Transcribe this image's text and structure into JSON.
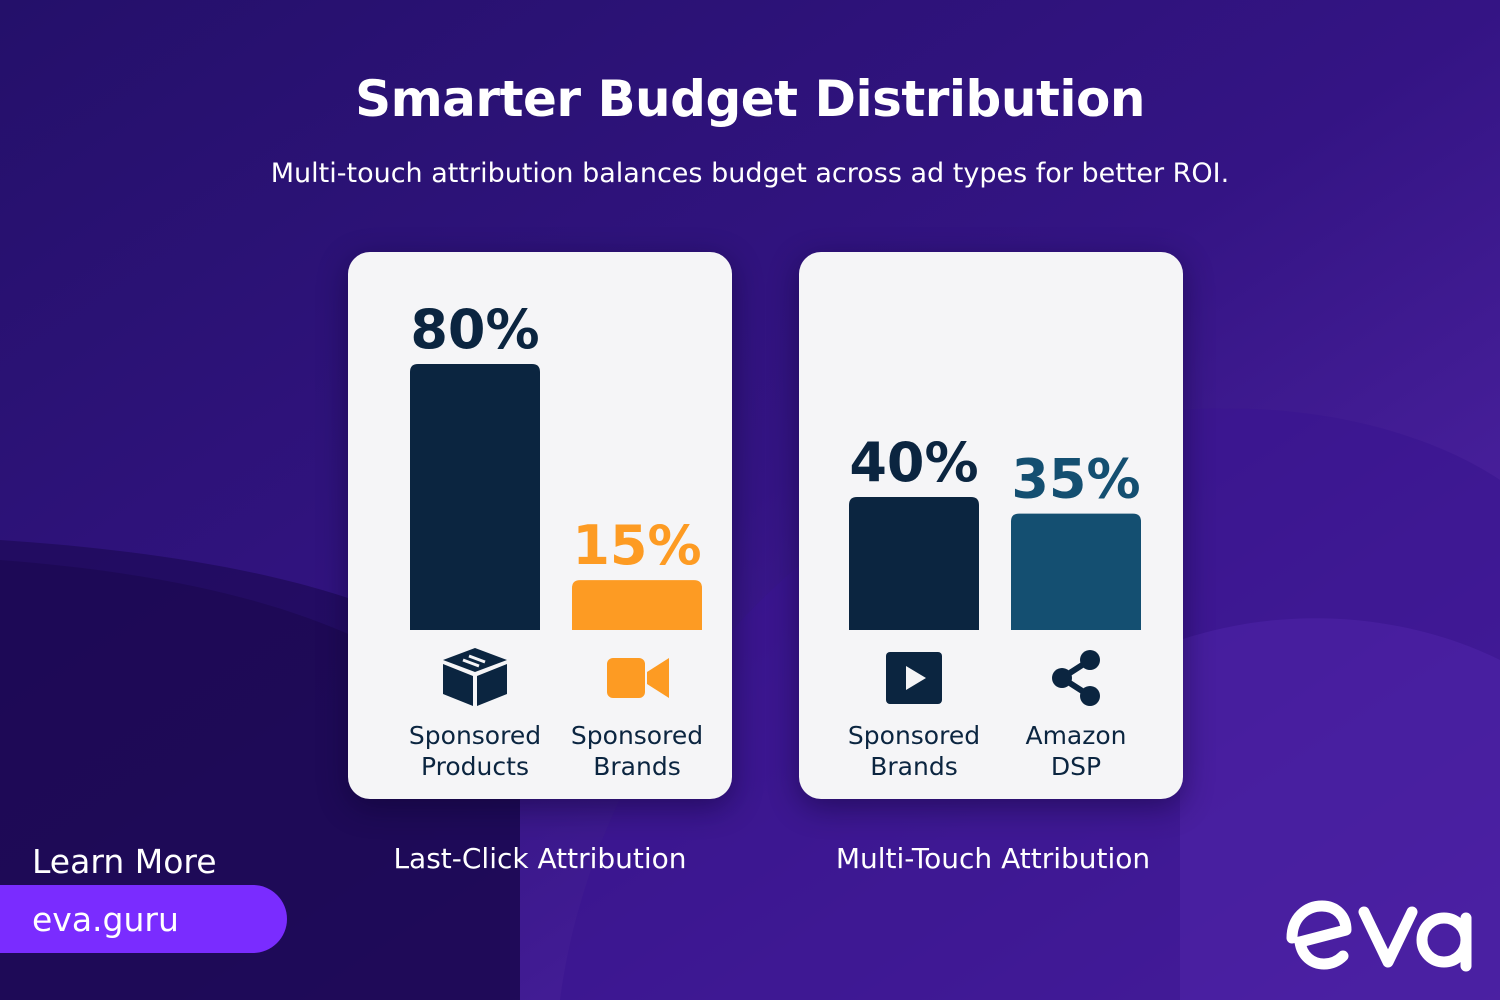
{
  "header": {
    "title": "Smarter Budget Distribution",
    "subtitle": "Multi-touch attribution balances budget across ad types for better ROI."
  },
  "chart_data": [
    {
      "type": "bar",
      "title": "Last-Click Attribution",
      "categories": [
        "Sponsored Products",
        "Sponsored Brands"
      ],
      "category_lines": [
        [
          "Sponsored",
          "Products"
        ],
        [
          "Sponsored",
          "Brands"
        ]
      ],
      "values": [
        80,
        15
      ],
      "value_labels": [
        "80%",
        "15%"
      ],
      "bar_colors": [
        "#0b2540",
        "#fd9b23"
      ],
      "label_colors": [
        "#0b2540",
        "#fd9b23"
      ],
      "icons": [
        "box-icon",
        "video-camera-icon"
      ],
      "ylim": [
        0,
        80
      ]
    },
    {
      "type": "bar",
      "title": "Multi-Touch Attribution",
      "categories": [
        "Sponsored Brands",
        "Amazon DSP"
      ],
      "category_lines": [
        [
          "Sponsored",
          "Brands"
        ],
        [
          "Amazon",
          "DSP"
        ]
      ],
      "values": [
        40,
        35
      ],
      "value_labels": [
        "40%",
        "35%"
      ],
      "bar_colors": [
        "#0b2540",
        "#144f71"
      ],
      "label_colors": [
        "#0b2540",
        "#144f71"
      ],
      "icons": [
        "play-video-icon",
        "share-icon"
      ],
      "ylim": [
        0,
        80
      ]
    }
  ],
  "footer": {
    "learn_more": "Learn More",
    "site": "eva.guru",
    "logo_text": "eva"
  },
  "colors": {
    "background": "#2a0f6e",
    "accent_pill": "#7a2cff",
    "card": "#f5f5f7"
  }
}
